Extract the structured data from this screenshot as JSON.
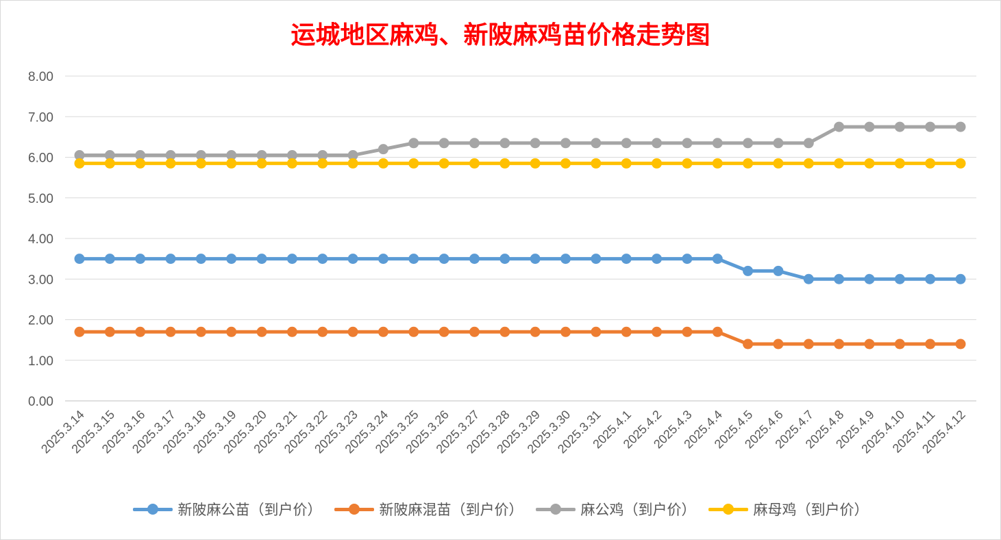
{
  "chart_data": {
    "type": "line",
    "title": "运城地区麻鸡、新陂麻鸡苗价格走势图",
    "title_color": "#ff0000",
    "xlabel": "",
    "ylabel": "",
    "ylim": [
      0,
      8
    ],
    "yticks": [
      "0.00",
      "1.00",
      "2.00",
      "3.00",
      "4.00",
      "5.00",
      "6.00",
      "7.00",
      "8.00"
    ],
    "grid": true,
    "legend_position": "bottom",
    "categories": [
      "2025.3.14",
      "2025.3.15",
      "2025.3.16",
      "2025.3.17",
      "2025.3.18",
      "2025.3.19",
      "2025.3.20",
      "2025.3.21",
      "2025.3.22",
      "2025.3.23",
      "2025.3.24",
      "2025.3.25",
      "2025.3.26",
      "2025.3.27",
      "2025.3.28",
      "2025.3.29",
      "2025.3.30",
      "2025.3.31",
      "2025.4.1",
      "2025.4.2",
      "2025.4.3",
      "2025.4.4",
      "2025.4.5",
      "2025.4.6",
      "2025.4.7",
      "2025.4.8",
      "2025.4.9",
      "2025.4.10",
      "2025.4.11",
      "2025.4.12"
    ],
    "series": [
      {
        "name": "新陂麻公苗（到户价）",
        "color": "#5b9bd5",
        "values": [
          3.5,
          3.5,
          3.5,
          3.5,
          3.5,
          3.5,
          3.5,
          3.5,
          3.5,
          3.5,
          3.5,
          3.5,
          3.5,
          3.5,
          3.5,
          3.5,
          3.5,
          3.5,
          3.5,
          3.5,
          3.5,
          3.5,
          3.2,
          3.2,
          3.0,
          3.0,
          3.0,
          3.0,
          3.0,
          3.0
        ]
      },
      {
        "name": "新陂麻混苗（到户价）",
        "color": "#ed7d31",
        "values": [
          1.7,
          1.7,
          1.7,
          1.7,
          1.7,
          1.7,
          1.7,
          1.7,
          1.7,
          1.7,
          1.7,
          1.7,
          1.7,
          1.7,
          1.7,
          1.7,
          1.7,
          1.7,
          1.7,
          1.7,
          1.7,
          1.7,
          1.4,
          1.4,
          1.4,
          1.4,
          1.4,
          1.4,
          1.4,
          1.4
        ]
      },
      {
        "name": "麻公鸡（到户价）",
        "color": "#a5a5a5",
        "values": [
          6.05,
          6.05,
          6.05,
          6.05,
          6.05,
          6.05,
          6.05,
          6.05,
          6.05,
          6.05,
          6.2,
          6.35,
          6.35,
          6.35,
          6.35,
          6.35,
          6.35,
          6.35,
          6.35,
          6.35,
          6.35,
          6.35,
          6.35,
          6.35,
          6.35,
          6.75,
          6.75,
          6.75,
          6.75,
          6.75
        ]
      },
      {
        "name": "麻母鸡（到户价）",
        "color": "#ffc000",
        "values": [
          5.85,
          5.85,
          5.85,
          5.85,
          5.85,
          5.85,
          5.85,
          5.85,
          5.85,
          5.85,
          5.85,
          5.85,
          5.85,
          5.85,
          5.85,
          5.85,
          5.85,
          5.85,
          5.85,
          5.85,
          5.85,
          5.85,
          5.85,
          5.85,
          5.85,
          5.85,
          5.85,
          5.85,
          5.85,
          5.85
        ]
      }
    ]
  }
}
